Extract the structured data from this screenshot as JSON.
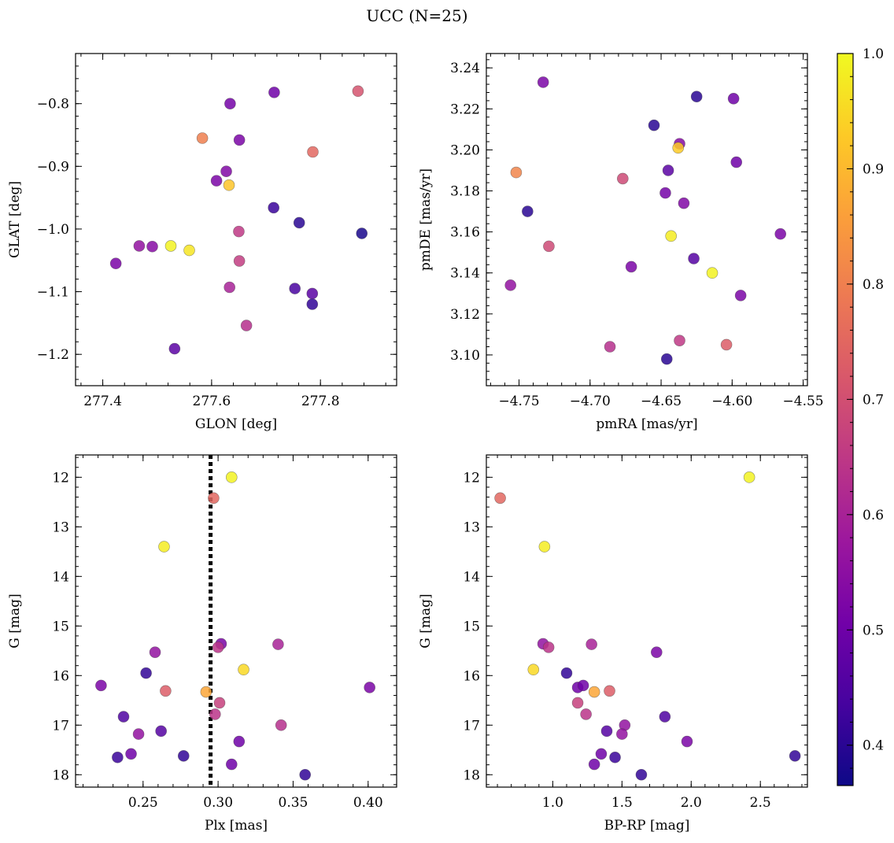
{
  "figure": {
    "title": "UCC (N=25)"
  },
  "colors": {
    "plasma": [
      "#0d0887",
      "#46039f",
      "#7201a8",
      "#9c179e",
      "#bd3786",
      "#d8576b",
      "#ed7953",
      "#fb9f3a",
      "#fdca26",
      "#f0f921"
    ],
    "reference_line": "#000000"
  },
  "colorbar": {
    "min": 0.365,
    "max": 1.0,
    "ticks": [
      0.4,
      0.5,
      0.6,
      0.7,
      0.8,
      0.9,
      1.0
    ],
    "tick_labels": [
      "0.4",
      "0.5",
      "0.6",
      "0.7",
      "0.8",
      "0.9",
      "1.0"
    ]
  },
  "chart_data": [
    {
      "id": "lonlat",
      "type": "scatter",
      "xlabel": "GLON [deg]",
      "ylabel": "GLAT [deg]",
      "xlim": [
        277.35,
        277.94
      ],
      "ylim": [
        -1.25,
        -0.72
      ],
      "xticks": [
        277.4,
        277.6,
        277.8
      ],
      "xtick_labels": [
        "277.4",
        "277.6",
        "277.8"
      ],
      "yticks": [
        -1.2,
        -1.1,
        -1.0,
        -0.9,
        -0.8
      ],
      "ytick_labels": [
        "−1.2",
        "−1.1",
        "−1.0",
        "−0.9",
        "−0.8"
      ],
      "points": [
        {
          "x": 277.424,
          "y": -1.055,
          "c": 0.52
        },
        {
          "x": 277.467,
          "y": -1.027,
          "c": 0.56
        },
        {
          "x": 277.491,
          "y": -1.028,
          "c": 0.54
        },
        {
          "x": 277.525,
          "y": -1.027,
          "c": 0.99
        },
        {
          "x": 277.532,
          "y": -1.191,
          "c": 0.47
        },
        {
          "x": 277.559,
          "y": -1.034,
          "c": 0.97
        },
        {
          "x": 277.583,
          "y": -0.855,
          "c": 0.8
        },
        {
          "x": 277.609,
          "y": -0.923,
          "c": 0.52
        },
        {
          "x": 277.627,
          "y": -0.908,
          "c": 0.53
        },
        {
          "x": 277.632,
          "y": -0.93,
          "c": 0.92
        },
        {
          "x": 277.633,
          "y": -1.093,
          "c": 0.6
        },
        {
          "x": 277.634,
          "y": -0.8,
          "c": 0.51
        },
        {
          "x": 277.65,
          "y": -1.004,
          "c": 0.65
        },
        {
          "x": 277.651,
          "y": -0.858,
          "c": 0.52
        },
        {
          "x": 277.651,
          "y": -1.051,
          "c": 0.66
        },
        {
          "x": 277.664,
          "y": -1.154,
          "c": 0.63
        },
        {
          "x": 277.714,
          "y": -0.966,
          "c": 0.42
        },
        {
          "x": 277.715,
          "y": -0.782,
          "c": 0.5
        },
        {
          "x": 277.753,
          "y": -1.095,
          "c": 0.44
        },
        {
          "x": 277.761,
          "y": -0.99,
          "c": 0.4
        },
        {
          "x": 277.785,
          "y": -1.103,
          "c": 0.47
        },
        {
          "x": 277.785,
          "y": -1.12,
          "c": 0.41
        },
        {
          "x": 277.786,
          "y": -0.877,
          "c": 0.75
        },
        {
          "x": 277.869,
          "y": -0.78,
          "c": 0.71
        },
        {
          "x": 277.876,
          "y": -1.007,
          "c": 0.38
        }
      ]
    },
    {
      "id": "pm",
      "type": "scatter",
      "xlabel": "pmRA [mas/yr]",
      "ylabel": "pmDE [mas/yr]",
      "xlim": [
        -4.773,
        -4.547
      ],
      "ylim": [
        3.085,
        3.247
      ],
      "xticks": [
        -4.75,
        -4.7,
        -4.65,
        -4.6,
        -4.55
      ],
      "xtick_labels": [
        "−4.75",
        "−4.70",
        "−4.65",
        "−4.60",
        "−4.55"
      ],
      "yticks": [
        3.1,
        3.12,
        3.14,
        3.16,
        3.18,
        3.2,
        3.22,
        3.24
      ],
      "ytick_labels": [
        "3.10",
        "3.12",
        "3.14",
        "3.16",
        "3.18",
        "3.20",
        "3.22",
        "3.24"
      ],
      "points": [
        {
          "x": -4.733,
          "y": 3.233,
          "c": 0.52
        },
        {
          "x": -4.625,
          "y": 3.226,
          "c": 0.4
        },
        {
          "x": -4.599,
          "y": 3.225,
          "c": 0.5
        },
        {
          "x": -4.655,
          "y": 3.212,
          "c": 0.4
        },
        {
          "x": -4.637,
          "y": 3.203,
          "c": 0.54
        },
        {
          "x": -4.638,
          "y": 3.201,
          "c": 0.93
        },
        {
          "x": -4.597,
          "y": 3.194,
          "c": 0.5
        },
        {
          "x": -4.645,
          "y": 3.19,
          "c": 0.47
        },
        {
          "x": -4.752,
          "y": 3.189,
          "c": 0.81
        },
        {
          "x": -4.677,
          "y": 3.186,
          "c": 0.69
        },
        {
          "x": -4.647,
          "y": 3.179,
          "c": 0.51
        },
        {
          "x": -4.634,
          "y": 3.174,
          "c": 0.53
        },
        {
          "x": -4.744,
          "y": 3.17,
          "c": 0.4
        },
        {
          "x": -4.566,
          "y": 3.159,
          "c": 0.52
        },
        {
          "x": -4.643,
          "y": 3.158,
          "c": 0.98
        },
        {
          "x": -4.729,
          "y": 3.153,
          "c": 0.69
        },
        {
          "x": -4.627,
          "y": 3.147,
          "c": 0.46
        },
        {
          "x": -4.671,
          "y": 3.143,
          "c": 0.52
        },
        {
          "x": -4.614,
          "y": 3.14,
          "c": 0.99
        },
        {
          "x": -4.756,
          "y": 3.134,
          "c": 0.56
        },
        {
          "x": -4.594,
          "y": 3.129,
          "c": 0.52
        },
        {
          "x": -4.686,
          "y": 3.104,
          "c": 0.63
        },
        {
          "x": -4.637,
          "y": 3.107,
          "c": 0.65
        },
        {
          "x": -4.604,
          "y": 3.105,
          "c": 0.73
        },
        {
          "x": -4.646,
          "y": 3.098,
          "c": 0.4
        }
      ]
    },
    {
      "id": "plx_g",
      "type": "scatter",
      "xlabel": "Plx [mas]",
      "ylabel": "G [mag]",
      "xlim": [
        0.205,
        0.419
      ],
      "ylim": [
        18.25,
        11.55
      ],
      "y_inverted": true,
      "xticks": [
        0.25,
        0.3,
        0.35,
        0.4
      ],
      "xtick_labels": [
        "0.25",
        "0.30",
        "0.35",
        "0.40"
      ],
      "yticks": [
        12,
        13,
        14,
        15,
        16,
        17,
        18
      ],
      "ytick_labels": [
        "12",
        "13",
        "14",
        "15",
        "16",
        "17",
        "18"
      ],
      "reference_line": {
        "x": 0.295,
        "style": "dotted"
      },
      "points": [
        {
          "x": 0.309,
          "y": 12.0,
          "c": 0.99
        },
        {
          "x": 0.297,
          "y": 12.42,
          "c": 0.75
        },
        {
          "x": 0.264,
          "y": 13.4,
          "c": 0.98
        },
        {
          "x": 0.302,
          "y": 15.36,
          "c": 0.52
        },
        {
          "x": 0.34,
          "y": 15.37,
          "c": 0.6
        },
        {
          "x": 0.3,
          "y": 15.43,
          "c": 0.64
        },
        {
          "x": 0.258,
          "y": 15.53,
          "c": 0.56
        },
        {
          "x": 0.317,
          "y": 15.88,
          "c": 0.95
        },
        {
          "x": 0.252,
          "y": 15.95,
          "c": 0.41
        },
        {
          "x": 0.222,
          "y": 16.2,
          "c": 0.52
        },
        {
          "x": 0.401,
          "y": 16.24,
          "c": 0.52
        },
        {
          "x": 0.265,
          "y": 16.31,
          "c": 0.73
        },
        {
          "x": 0.292,
          "y": 16.33,
          "c": 0.87
        },
        {
          "x": 0.301,
          "y": 16.55,
          "c": 0.67
        },
        {
          "x": 0.237,
          "y": 16.83,
          "c": 0.45
        },
        {
          "x": 0.298,
          "y": 16.78,
          "c": 0.64
        },
        {
          "x": 0.342,
          "y": 17.0,
          "c": 0.63
        },
        {
          "x": 0.262,
          "y": 17.12,
          "c": 0.46
        },
        {
          "x": 0.247,
          "y": 17.18,
          "c": 0.56
        },
        {
          "x": 0.314,
          "y": 17.33,
          "c": 0.5
        },
        {
          "x": 0.242,
          "y": 17.58,
          "c": 0.5
        },
        {
          "x": 0.233,
          "y": 17.65,
          "c": 0.42
        },
        {
          "x": 0.277,
          "y": 17.62,
          "c": 0.41
        },
        {
          "x": 0.309,
          "y": 17.79,
          "c": 0.5
        },
        {
          "x": 0.358,
          "y": 18.0,
          "c": 0.41
        }
      ]
    },
    {
      "id": "cmd",
      "type": "scatter",
      "xlabel": "BP-RP [mag]",
      "ylabel": "G [mag]",
      "xlim": [
        0.52,
        2.84
      ],
      "ylim": [
        18.25,
        11.55
      ],
      "y_inverted": true,
      "xticks": [
        1.0,
        1.5,
        2.0,
        2.5
      ],
      "xtick_labels": [
        "1.0",
        "1.5",
        "2.0",
        "2.5"
      ],
      "yticks": [
        12,
        13,
        14,
        15,
        16,
        17,
        18
      ],
      "ytick_labels": [
        "12",
        "13",
        "14",
        "15",
        "16",
        "17",
        "18"
      ],
      "points": [
        {
          "x": 2.42,
          "y": 12.0,
          "c": 0.99
        },
        {
          "x": 0.62,
          "y": 12.42,
          "c": 0.75
        },
        {
          "x": 0.94,
          "y": 13.4,
          "c": 0.98
        },
        {
          "x": 0.93,
          "y": 15.36,
          "c": 0.56
        },
        {
          "x": 0.97,
          "y": 15.43,
          "c": 0.64
        },
        {
          "x": 1.28,
          "y": 15.37,
          "c": 0.6
        },
        {
          "x": 1.75,
          "y": 15.53,
          "c": 0.52
        },
        {
          "x": 0.86,
          "y": 15.88,
          "c": 0.95
        },
        {
          "x": 1.1,
          "y": 15.95,
          "c": 0.41
        },
        {
          "x": 1.18,
          "y": 16.24,
          "c": 0.5
        },
        {
          "x": 1.22,
          "y": 16.2,
          "c": 0.5
        },
        {
          "x": 1.3,
          "y": 16.33,
          "c": 0.87
        },
        {
          "x": 1.41,
          "y": 16.31,
          "c": 0.73
        },
        {
          "x": 1.18,
          "y": 16.55,
          "c": 0.67
        },
        {
          "x": 1.24,
          "y": 16.78,
          "c": 0.64
        },
        {
          "x": 1.81,
          "y": 16.83,
          "c": 0.45
        },
        {
          "x": 1.52,
          "y": 17.0,
          "c": 0.56
        },
        {
          "x": 1.39,
          "y": 17.12,
          "c": 0.46
        },
        {
          "x": 1.5,
          "y": 17.18,
          "c": 0.56
        },
        {
          "x": 1.97,
          "y": 17.33,
          "c": 0.52
        },
        {
          "x": 1.35,
          "y": 17.58,
          "c": 0.5
        },
        {
          "x": 1.45,
          "y": 17.65,
          "c": 0.42
        },
        {
          "x": 2.75,
          "y": 17.62,
          "c": 0.41
        },
        {
          "x": 1.3,
          "y": 17.79,
          "c": 0.5
        },
        {
          "x": 1.64,
          "y": 18.0,
          "c": 0.41
        }
      ]
    }
  ]
}
